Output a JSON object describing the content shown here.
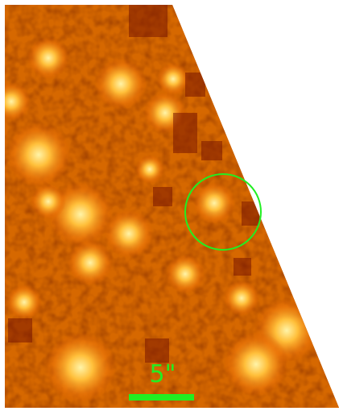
{
  "image": {
    "kind": "astronomical-cutout",
    "colormap": "heat",
    "colors": {
      "dark": "#7a1600",
      "mid": "#c85000",
      "bright": "#ff9a1a",
      "highlight": "#ffef9a",
      "marker": "#22ee22",
      "background": "#ffffff"
    }
  },
  "marker": {
    "shape": "circle",
    "icon": "target-circle-icon"
  },
  "scalebar": {
    "label": "5\"",
    "color": "#22ee22"
  }
}
